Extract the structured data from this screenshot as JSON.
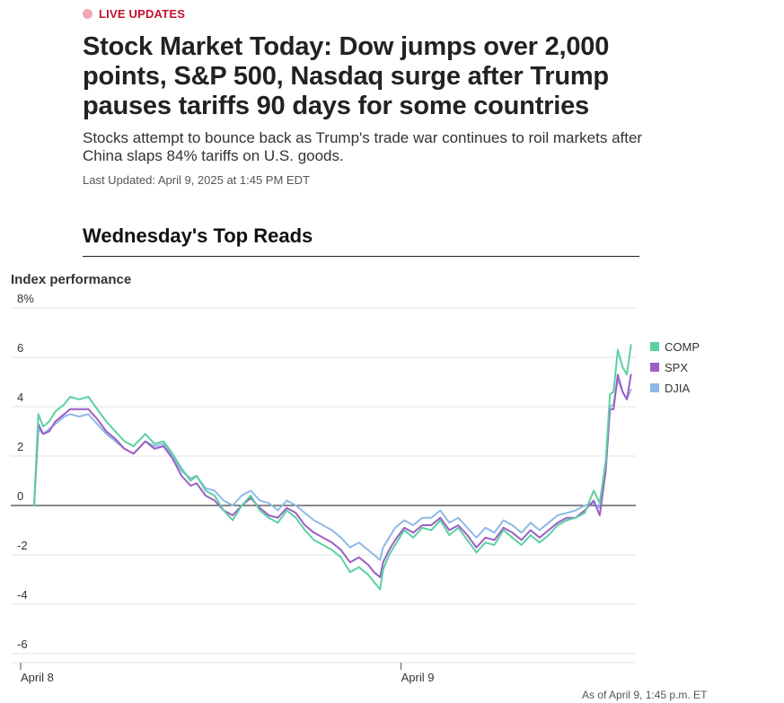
{
  "article": {
    "badge": "LIVE UPDATES",
    "headline": "Stock Market Today: Dow jumps over 2,000 points, S&P 500, Nasdaq surge after Trump pauses tariffs 90 days for some countries",
    "dek": "Stocks attempt to bounce back as Trump's trade war continues to roil markets after China slaps 84% tariffs on U.S. goods.",
    "updated": "Last Updated: April 9, 2025 at 1:45 PM EDT",
    "section_title": "Wednesday's Top Reads"
  },
  "chart_data": {
    "type": "line",
    "title": "Index performance",
    "y_tick_labels": [
      "8%",
      "6",
      "4",
      "2",
      "0",
      "-2",
      "-4",
      "-6"
    ],
    "y_ticks": [
      8,
      6,
      4,
      2,
      0,
      -2,
      -4,
      -6
    ],
    "ylim": [
      -6,
      8
    ],
    "xlim": [
      0,
      1
    ],
    "x_ticks": [
      {
        "label": "April 8",
        "x": 0
      },
      {
        "label": "April 9",
        "x": 0.58
      }
    ],
    "note": "As of April 9, 1:45 p.m. ET",
    "legend_position": "right",
    "series": [
      {
        "name": "COMP",
        "color": "#5bd1a0",
        "points": [
          [
            0.0,
            0.0
          ],
          [
            0.007,
            3.7
          ],
          [
            0.015,
            3.2
          ],
          [
            0.025,
            3.4
          ],
          [
            0.035,
            3.8
          ],
          [
            0.05,
            4.1
          ],
          [
            0.06,
            4.4
          ],
          [
            0.075,
            4.3
          ],
          [
            0.09,
            4.4
          ],
          [
            0.105,
            3.9
          ],
          [
            0.12,
            3.4
          ],
          [
            0.135,
            3.0
          ],
          [
            0.15,
            2.6
          ],
          [
            0.165,
            2.4
          ],
          [
            0.185,
            2.9
          ],
          [
            0.2,
            2.5
          ],
          [
            0.215,
            2.6
          ],
          [
            0.23,
            2.1
          ],
          [
            0.245,
            1.5
          ],
          [
            0.26,
            1.0
          ],
          [
            0.27,
            1.2
          ],
          [
            0.285,
            0.6
          ],
          [
            0.3,
            0.4
          ],
          [
            0.315,
            -0.2
          ],
          [
            0.33,
            -0.6
          ],
          [
            0.345,
            0.0
          ],
          [
            0.36,
            0.4
          ],
          [
            0.375,
            -0.2
          ],
          [
            0.39,
            -0.5
          ],
          [
            0.405,
            -0.7
          ],
          [
            0.42,
            -0.2
          ],
          [
            0.435,
            -0.5
          ],
          [
            0.45,
            -1.0
          ],
          [
            0.465,
            -1.4
          ],
          [
            0.48,
            -1.6
          ],
          [
            0.495,
            -1.8
          ],
          [
            0.51,
            -2.1
          ],
          [
            0.525,
            -2.7
          ],
          [
            0.54,
            -2.5
          ],
          [
            0.555,
            -2.8
          ],
          [
            0.565,
            -3.1
          ],
          [
            0.575,
            -3.4
          ],
          [
            0.58,
            -2.6
          ],
          [
            0.59,
            -2.0
          ],
          [
            0.6,
            -1.6
          ],
          [
            0.615,
            -1.0
          ],
          [
            0.63,
            -1.3
          ],
          [
            0.645,
            -0.9
          ],
          [
            0.66,
            -1.0
          ],
          [
            0.675,
            -0.6
          ],
          [
            0.69,
            -1.2
          ],
          [
            0.705,
            -0.9
          ],
          [
            0.72,
            -1.4
          ],
          [
            0.735,
            -1.9
          ],
          [
            0.75,
            -1.5
          ],
          [
            0.765,
            -1.6
          ],
          [
            0.78,
            -1.0
          ],
          [
            0.795,
            -1.3
          ],
          [
            0.81,
            -1.6
          ],
          [
            0.825,
            -1.2
          ],
          [
            0.84,
            -1.5
          ],
          [
            0.855,
            -1.2
          ],
          [
            0.87,
            -0.8
          ],
          [
            0.885,
            -0.6
          ],
          [
            0.9,
            -0.5
          ],
          [
            0.915,
            -0.3
          ],
          [
            0.93,
            0.6
          ],
          [
            0.94,
            0.1
          ],
          [
            0.95,
            1.8
          ],
          [
            0.957,
            4.5
          ],
          [
            0.963,
            4.6
          ],
          [
            0.97,
            6.3
          ],
          [
            0.978,
            5.6
          ],
          [
            0.985,
            5.3
          ],
          [
            0.992,
            6.5
          ]
        ]
      },
      {
        "name": "SPX",
        "color": "#9d5ec6",
        "points": [
          [
            0.0,
            0.0
          ],
          [
            0.007,
            3.3
          ],
          [
            0.015,
            2.9
          ],
          [
            0.025,
            3.0
          ],
          [
            0.035,
            3.4
          ],
          [
            0.05,
            3.7
          ],
          [
            0.06,
            3.9
          ],
          [
            0.075,
            3.9
          ],
          [
            0.09,
            3.9
          ],
          [
            0.105,
            3.5
          ],
          [
            0.12,
            3.0
          ],
          [
            0.135,
            2.7
          ],
          [
            0.15,
            2.3
          ],
          [
            0.165,
            2.1
          ],
          [
            0.185,
            2.6
          ],
          [
            0.2,
            2.3
          ],
          [
            0.215,
            2.4
          ],
          [
            0.23,
            1.9
          ],
          [
            0.245,
            1.2
          ],
          [
            0.26,
            0.8
          ],
          [
            0.27,
            0.9
          ],
          [
            0.285,
            0.4
          ],
          [
            0.3,
            0.2
          ],
          [
            0.315,
            -0.2
          ],
          [
            0.33,
            -0.4
          ],
          [
            0.345,
            0.0
          ],
          [
            0.36,
            0.3
          ],
          [
            0.375,
            -0.1
          ],
          [
            0.39,
            -0.4
          ],
          [
            0.405,
            -0.5
          ],
          [
            0.42,
            -0.1
          ],
          [
            0.435,
            -0.3
          ],
          [
            0.45,
            -0.8
          ],
          [
            0.465,
            -1.1
          ],
          [
            0.48,
            -1.3
          ],
          [
            0.495,
            -1.5
          ],
          [
            0.51,
            -1.8
          ],
          [
            0.525,
            -2.3
          ],
          [
            0.54,
            -2.1
          ],
          [
            0.555,
            -2.4
          ],
          [
            0.565,
            -2.7
          ],
          [
            0.575,
            -2.9
          ],
          [
            0.58,
            -2.3
          ],
          [
            0.59,
            -1.8
          ],
          [
            0.6,
            -1.4
          ],
          [
            0.615,
            -0.9
          ],
          [
            0.63,
            -1.1
          ],
          [
            0.645,
            -0.8
          ],
          [
            0.66,
            -0.8
          ],
          [
            0.675,
            -0.5
          ],
          [
            0.69,
            -1.0
          ],
          [
            0.705,
            -0.8
          ],
          [
            0.72,
            -1.2
          ],
          [
            0.735,
            -1.7
          ],
          [
            0.75,
            -1.3
          ],
          [
            0.765,
            -1.4
          ],
          [
            0.78,
            -0.9
          ],
          [
            0.795,
            -1.1
          ],
          [
            0.81,
            -1.4
          ],
          [
            0.825,
            -1.0
          ],
          [
            0.84,
            -1.3
          ],
          [
            0.855,
            -1.0
          ],
          [
            0.87,
            -0.7
          ],
          [
            0.885,
            -0.5
          ],
          [
            0.9,
            -0.5
          ],
          [
            0.915,
            -0.2
          ],
          [
            0.93,
            0.2
          ],
          [
            0.94,
            -0.4
          ],
          [
            0.95,
            1.4
          ],
          [
            0.957,
            3.9
          ],
          [
            0.963,
            3.9
          ],
          [
            0.97,
            5.3
          ],
          [
            0.978,
            4.6
          ],
          [
            0.985,
            4.3
          ],
          [
            0.992,
            5.3
          ]
        ]
      },
      {
        "name": "DJIA",
        "color": "#8fb9e6",
        "points": [
          [
            0.0,
            0.0
          ],
          [
            0.007,
            3.1
          ],
          [
            0.015,
            2.9
          ],
          [
            0.025,
            3.1
          ],
          [
            0.035,
            3.3
          ],
          [
            0.05,
            3.6
          ],
          [
            0.06,
            3.7
          ],
          [
            0.075,
            3.6
          ],
          [
            0.09,
            3.7
          ],
          [
            0.105,
            3.3
          ],
          [
            0.12,
            2.9
          ],
          [
            0.135,
            2.6
          ],
          [
            0.15,
            2.3
          ],
          [
            0.165,
            2.1
          ],
          [
            0.185,
            2.6
          ],
          [
            0.2,
            2.4
          ],
          [
            0.215,
            2.5
          ],
          [
            0.23,
            2.0
          ],
          [
            0.245,
            1.4
          ],
          [
            0.26,
            1.1
          ],
          [
            0.27,
            1.2
          ],
          [
            0.285,
            0.7
          ],
          [
            0.3,
            0.6
          ],
          [
            0.315,
            0.2
          ],
          [
            0.33,
            0.0
          ],
          [
            0.345,
            0.4
          ],
          [
            0.36,
            0.6
          ],
          [
            0.375,
            0.2
          ],
          [
            0.39,
            0.1
          ],
          [
            0.405,
            -0.2
          ],
          [
            0.42,
            0.2
          ],
          [
            0.435,
            0.0
          ],
          [
            0.45,
            -0.3
          ],
          [
            0.465,
            -0.6
          ],
          [
            0.48,
            -0.8
          ],
          [
            0.495,
            -1.0
          ],
          [
            0.51,
            -1.3
          ],
          [
            0.525,
            -1.7
          ],
          [
            0.54,
            -1.5
          ],
          [
            0.555,
            -1.8
          ],
          [
            0.565,
            -2.0
          ],
          [
            0.575,
            -2.2
          ],
          [
            0.58,
            -1.7
          ],
          [
            0.59,
            -1.3
          ],
          [
            0.6,
            -0.9
          ],
          [
            0.615,
            -0.6
          ],
          [
            0.63,
            -0.8
          ],
          [
            0.645,
            -0.5
          ],
          [
            0.66,
            -0.5
          ],
          [
            0.675,
            -0.2
          ],
          [
            0.69,
            -0.7
          ],
          [
            0.705,
            -0.5
          ],
          [
            0.72,
            -0.9
          ],
          [
            0.735,
            -1.3
          ],
          [
            0.75,
            -0.9
          ],
          [
            0.765,
            -1.1
          ],
          [
            0.78,
            -0.6
          ],
          [
            0.795,
            -0.8
          ],
          [
            0.81,
            -1.1
          ],
          [
            0.825,
            -0.7
          ],
          [
            0.84,
            -1.0
          ],
          [
            0.855,
            -0.7
          ],
          [
            0.87,
            -0.4
          ],
          [
            0.885,
            -0.3
          ],
          [
            0.9,
            -0.2
          ],
          [
            0.915,
            0.0
          ],
          [
            0.93,
            0.1
          ],
          [
            0.94,
            -0.1
          ],
          [
            0.95,
            1.6
          ],
          [
            0.957,
            4.0
          ],
          [
            0.963,
            4.1
          ],
          [
            0.97,
            5.1
          ],
          [
            0.978,
            4.6
          ],
          [
            0.985,
            4.3
          ],
          [
            0.992,
            4.7
          ]
        ]
      }
    ]
  }
}
